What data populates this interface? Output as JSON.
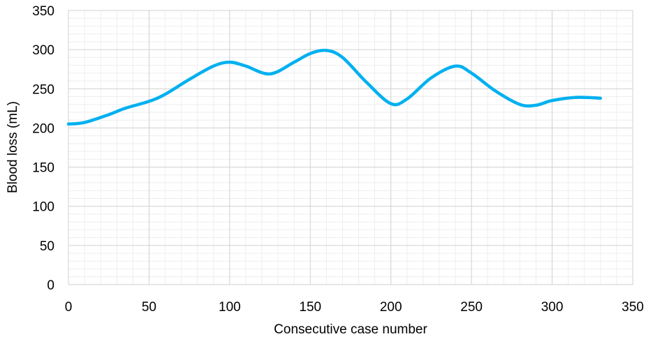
{
  "chart_data": {
    "type": "line",
    "xlabel": "Consecutive case number",
    "ylabel": "Blood loss (mL)",
    "xlim": [
      0,
      350
    ],
    "ylim": [
      0,
      350
    ],
    "x_ticks": [
      0,
      50,
      100,
      150,
      200,
      250,
      300,
      350
    ],
    "y_ticks": [
      0,
      50,
      100,
      150,
      200,
      250,
      300,
      350
    ],
    "grid": "major and minor",
    "legend": "none",
    "line_color": "#00b0f0",
    "series": [
      {
        "x": [
          0,
          10,
          25,
          35,
          50,
          60,
          75,
          90,
          100,
          110,
          125,
          140,
          150,
          160,
          170,
          185,
          200,
          210,
          225,
          240,
          250,
          265,
          280,
          290,
          300,
          315,
          330
        ],
        "values": [
          205,
          207,
          217,
          225,
          234,
          243,
          262,
          279,
          284,
          279,
          269,
          284,
          295,
          299,
          290,
          258,
          231,
          237,
          264,
          279,
          270,
          247,
          230,
          229,
          235,
          239,
          238
        ]
      }
    ]
  }
}
